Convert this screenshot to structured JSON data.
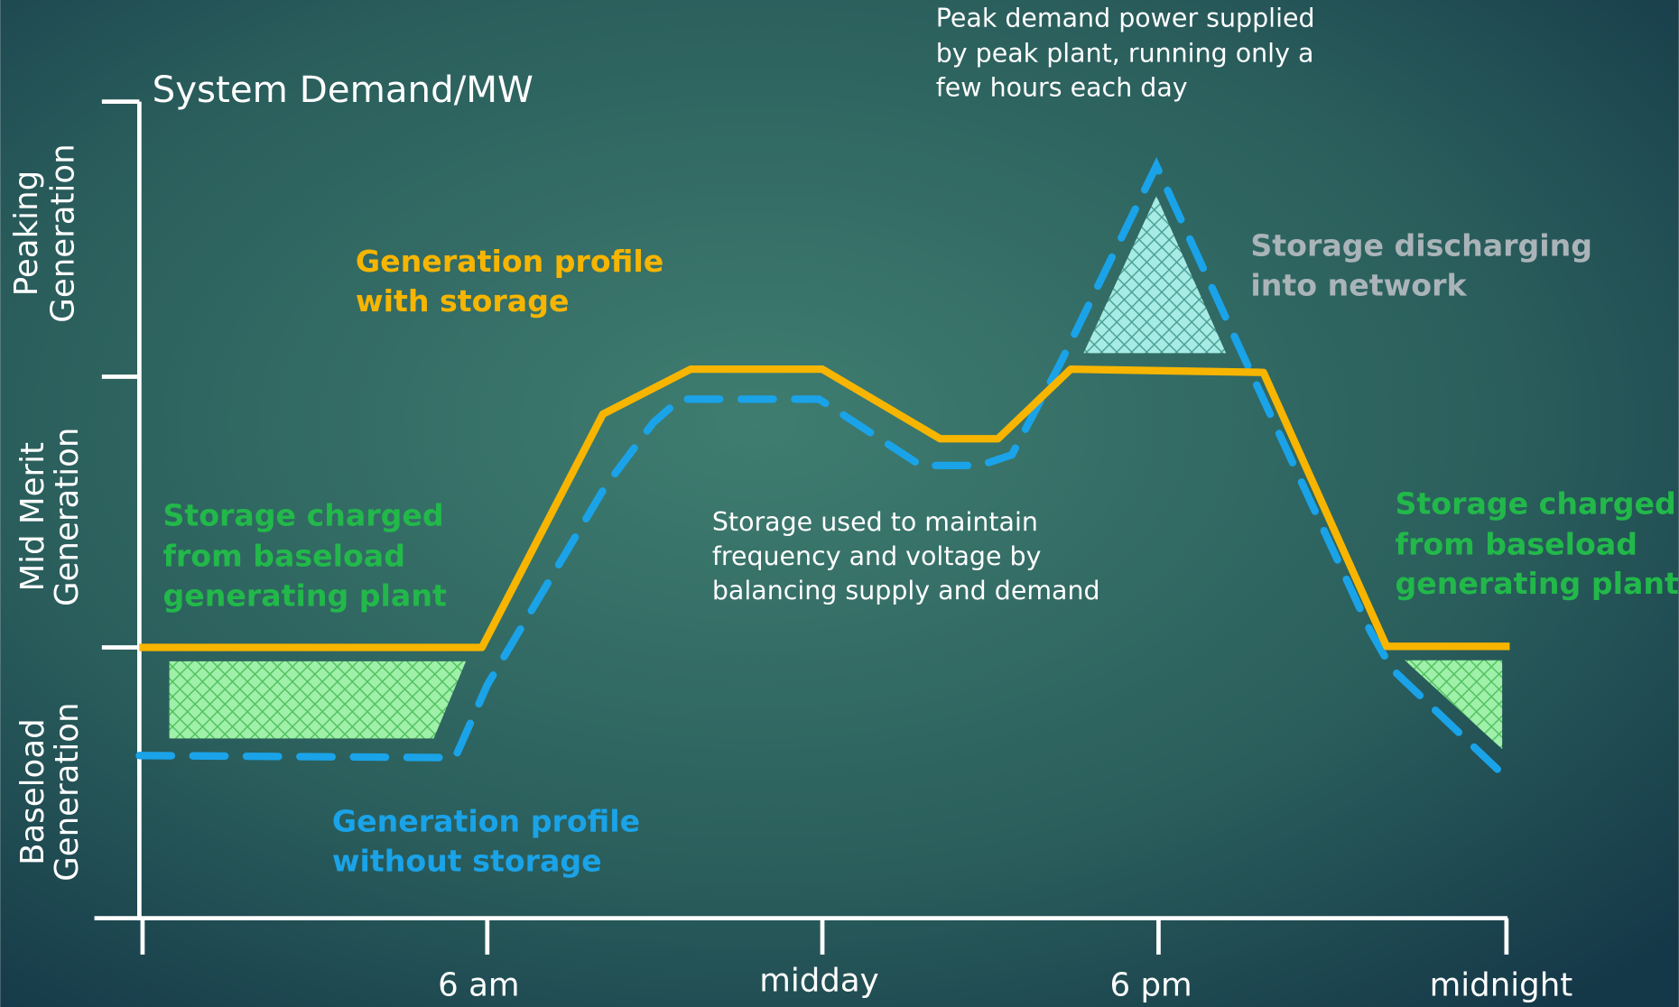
{
  "y_axis_title": "System Demand/MW",
  "bands": [
    [
      "Peaking",
      "Generation"
    ],
    [
      "Mid Merit",
      "Generation"
    ],
    [
      "Baseload",
      "Generation"
    ]
  ],
  "x_labels": [
    "6 am",
    "midday",
    "6 pm",
    "midnight"
  ],
  "annotations": {
    "with_storage": [
      "Generation profile",
      "with storage"
    ],
    "without_storage": [
      "Generation profile",
      "without storage"
    ],
    "charged_left": [
      "Storage charged",
      "from baseload",
      "generating plant"
    ],
    "charged_right": [
      "Storage charged",
      "from baseload",
      "generating plant"
    ],
    "discharging": [
      "Storage discharging",
      "into network"
    ],
    "balancing": [
      "Storage used to maintain",
      "frequency and voltage by",
      "balancing supply and demand"
    ],
    "peak": [
      "Peak demand power supplied",
      "by peak plant, running only a",
      "few hours each day"
    ]
  }
}
